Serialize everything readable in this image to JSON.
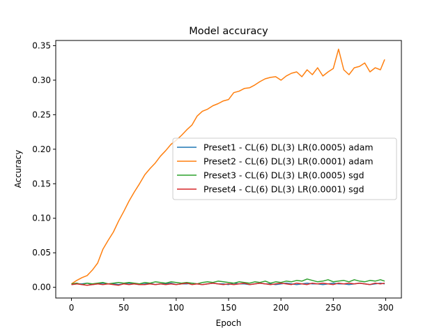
{
  "chart_data": {
    "type": "line",
    "title": "Model accuracy",
    "xlabel": "Epoch",
    "ylabel": "Accuracy",
    "xlim": [
      -15,
      315
    ],
    "ylim": [
      -0.0155,
      0.3575
    ],
    "xticks": [
      0,
      50,
      100,
      150,
      200,
      250,
      300
    ],
    "yticks": [
      0.0,
      0.05,
      0.1,
      0.15,
      0.2,
      0.25,
      0.3,
      0.35
    ],
    "xtick_labels": [
      "0",
      "50",
      "100",
      "150",
      "200",
      "250",
      "300"
    ],
    "ytick_labels": [
      "0.00",
      "0.05",
      "0.10",
      "0.15",
      "0.20",
      "0.25",
      "0.30",
      "0.35"
    ],
    "grid": false,
    "legend_position": "center-right",
    "x": [
      0,
      5,
      10,
      15,
      20,
      25,
      30,
      35,
      40,
      45,
      50,
      55,
      60,
      65,
      70,
      75,
      80,
      85,
      90,
      95,
      100,
      105,
      110,
      115,
      120,
      125,
      130,
      135,
      140,
      145,
      150,
      155,
      160,
      165,
      170,
      175,
      180,
      185,
      190,
      195,
      200,
      205,
      210,
      215,
      220,
      225,
      230,
      235,
      240,
      245,
      250,
      255,
      260,
      265,
      270,
      275,
      280,
      285,
      290,
      295,
      299
    ],
    "series": [
      {
        "name": "Preset1 - CL(6) DL(3) LR(0.0005) adam",
        "color": "#1f77b4",
        "values": [
          0.004,
          0.005,
          0.005,
          0.006,
          0.004,
          0.005,
          0.006,
          0.005,
          0.005,
          0.004,
          0.005,
          0.006,
          0.005,
          0.004,
          0.005,
          0.006,
          0.004,
          0.005,
          0.005,
          0.006,
          0.004,
          0.005,
          0.005,
          0.006,
          0.005,
          0.004,
          0.005,
          0.006,
          0.005,
          0.005,
          0.004,
          0.006,
          0.005,
          0.005,
          0.004,
          0.005,
          0.006,
          0.005,
          0.005,
          0.004,
          0.005,
          0.006,
          0.005,
          0.004,
          0.005,
          0.006,
          0.005,
          0.005,
          0.004,
          0.005,
          0.006,
          0.005,
          0.005,
          0.004,
          0.005,
          0.006,
          0.005,
          0.004,
          0.005,
          0.006,
          0.005
        ]
      },
      {
        "name": "Preset2 - CL(6) DL(3) LR(0.0001) adam",
        "color": "#ff7f0e",
        "values": [
          0.005,
          0.01,
          0.014,
          0.017,
          0.025,
          0.035,
          0.055,
          0.068,
          0.08,
          0.096,
          0.11,
          0.125,
          0.138,
          0.15,
          0.163,
          0.172,
          0.18,
          0.19,
          0.198,
          0.207,
          0.213,
          0.22,
          0.228,
          0.235,
          0.248,
          0.255,
          0.258,
          0.263,
          0.266,
          0.27,
          0.272,
          0.282,
          0.284,
          0.288,
          0.289,
          0.293,
          0.298,
          0.302,
          0.304,
          0.305,
          0.3,
          0.306,
          0.31,
          0.312,
          0.305,
          0.315,
          0.308,
          0.318,
          0.306,
          0.312,
          0.317,
          0.345,
          0.315,
          0.308,
          0.318,
          0.32,
          0.325,
          0.312,
          0.318,
          0.315,
          0.33
        ]
      },
      {
        "name": "Preset3 - CL(6) DL(3) LR(0.0005) sgd",
        "color": "#2ca02c",
        "values": [
          0.005,
          0.006,
          0.004,
          0.006,
          0.005,
          0.006,
          0.007,
          0.005,
          0.006,
          0.007,
          0.006,
          0.007,
          0.006,
          0.005,
          0.007,
          0.006,
          0.008,
          0.007,
          0.006,
          0.008,
          0.007,
          0.006,
          0.007,
          0.006,
          0.005,
          0.007,
          0.008,
          0.007,
          0.009,
          0.008,
          0.007,
          0.006,
          0.008,
          0.007,
          0.006,
          0.008,
          0.007,
          0.009,
          0.006,
          0.008,
          0.007,
          0.009,
          0.008,
          0.01,
          0.009,
          0.012,
          0.01,
          0.008,
          0.009,
          0.011,
          0.008,
          0.009,
          0.01,
          0.008,
          0.011,
          0.009,
          0.008,
          0.01,
          0.009,
          0.011,
          0.009
        ]
      },
      {
        "name": "Preset4 - CL(6) DL(3) LR(0.0001) sgd",
        "color": "#d62728",
        "values": [
          0.004,
          0.005,
          0.004,
          0.003,
          0.004,
          0.005,
          0.004,
          0.005,
          0.004,
          0.003,
          0.005,
          0.004,
          0.005,
          0.004,
          0.004,
          0.005,
          0.004,
          0.005,
          0.004,
          0.005,
          0.004,
          0.005,
          0.006,
          0.004,
          0.005,
          0.004,
          0.005,
          0.006,
          0.005,
          0.004,
          0.005,
          0.004,
          0.005,
          0.006,
          0.004,
          0.005,
          0.006,
          0.005,
          0.004,
          0.005,
          0.006,
          0.005,
          0.004,
          0.006,
          0.005,
          0.004,
          0.006,
          0.005,
          0.006,
          0.005,
          0.004,
          0.006,
          0.005,
          0.006,
          0.005,
          0.006,
          0.005,
          0.004,
          0.006,
          0.005,
          0.006
        ]
      }
    ]
  }
}
